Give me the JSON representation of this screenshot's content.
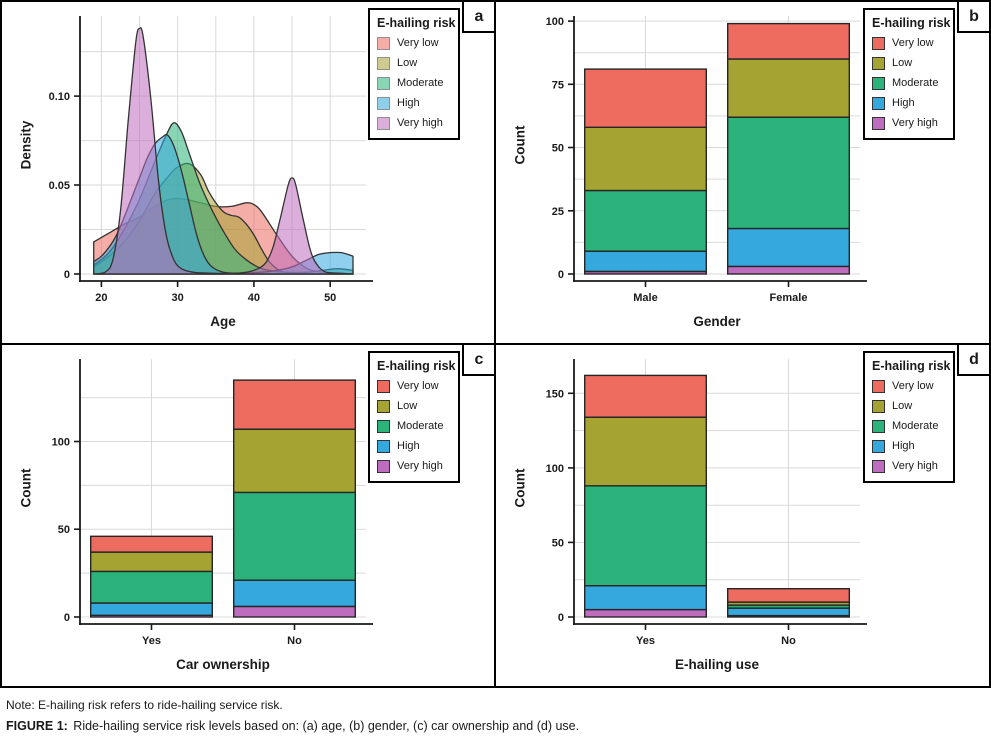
{
  "legend": {
    "title": "E-hailing risk",
    "items": [
      {
        "label": "Very low",
        "color": "#ED6B5F"
      },
      {
        "label": "Low",
        "color": "#A5A433"
      },
      {
        "label": "Moderate",
        "color": "#2BB37B"
      },
      {
        "label": "High",
        "color": "#35A8DE"
      },
      {
        "label": "Very high",
        "color": "#BE6CBE"
      }
    ]
  },
  "note": "Note: E-hailing risk refers to ride-hailing service risk.",
  "caption": {
    "prefix": "FIGURE 1:",
    "text": " Ride-hailing service risk levels based on: (a) age, (b) gender, (c) car ownership and (d) use."
  },
  "colors": {
    "axis": "#1a1a1a",
    "grid": "#d9d9d9",
    "outline": "#262626",
    "curve_stroke": "#333333"
  },
  "chart_data": [
    {
      "label": "a",
      "type": "area",
      "xlabel": "Age",
      "ylabel": "Density",
      "xlim": [
        17.2,
        54.7
      ],
      "xticks": [
        {
          "v": 20,
          "label": "20"
        },
        {
          "v": 30,
          "label": "30"
        },
        {
          "v": 40,
          "label": "40"
        },
        {
          "v": 50,
          "label": "50"
        }
      ],
      "ymax": 0.145,
      "yticks": [
        {
          "v": 0,
          "label": "0"
        },
        {
          "v": 0.05,
          "label": "0.05"
        },
        {
          "v": 0.1,
          "label": "0.10"
        }
      ],
      "grid": true,
      "legend_position": "top-right",
      "fill_opacity": 0.55,
      "series": [
        {
          "name": "Very low",
          "color": "#ED6B5F",
          "points": [
            [
              19,
              0.018
            ],
            [
              21,
              0.023
            ],
            [
              23,
              0.028
            ],
            [
              25,
              0.032
            ],
            [
              27,
              0.038
            ],
            [
              29,
              0.042
            ],
            [
              31,
              0.042
            ],
            [
              33,
              0.04
            ],
            [
              35,
              0.038
            ],
            [
              37,
              0.038
            ],
            [
              39,
              0.04
            ],
            [
              40,
              0.039
            ],
            [
              41,
              0.035
            ],
            [
              43,
              0.022
            ],
            [
              45,
              0.01
            ],
            [
              47,
              0.003
            ],
            [
              49,
              0.001
            ],
            [
              51,
              0.0005
            ],
            [
              53,
              0
            ]
          ]
        },
        {
          "name": "Low",
          "color": "#A5A433",
          "points": [
            [
              19,
              0.004
            ],
            [
              21,
              0.01
            ],
            [
              23,
              0.018
            ],
            [
              25,
              0.03
            ],
            [
              27,
              0.045
            ],
            [
              29,
              0.056
            ],
            [
              30,
              0.06
            ],
            [
              31.5,
              0.062
            ],
            [
              33,
              0.056
            ],
            [
              34,
              0.047
            ],
            [
              35,
              0.04
            ],
            [
              36,
              0.035
            ],
            [
              37,
              0.033
            ],
            [
              38,
              0.032
            ],
            [
              39,
              0.028
            ],
            [
              40,
              0.022
            ],
            [
              41,
              0.014
            ],
            [
              42,
              0.007
            ],
            [
              43,
              0.003
            ],
            [
              44,
              0.001
            ],
            [
              46,
              0
            ],
            [
              53,
              0
            ]
          ]
        },
        {
          "name": "Moderate",
          "color": "#2BB37B",
          "points": [
            [
              19,
              0.005
            ],
            [
              21,
              0.012
            ],
            [
              23,
              0.025
            ],
            [
              25,
              0.042
            ],
            [
              27,
              0.063
            ],
            [
              28.5,
              0.078
            ],
            [
              29.5,
              0.085
            ],
            [
              30.5,
              0.08
            ],
            [
              31.5,
              0.068
            ],
            [
              33,
              0.05
            ],
            [
              34.5,
              0.036
            ],
            [
              36,
              0.024
            ],
            [
              37.5,
              0.014
            ],
            [
              39,
              0.008
            ],
            [
              40.5,
              0.004
            ],
            [
              42,
              0.002
            ],
            [
              44,
              0.001
            ],
            [
              47,
              0.001
            ],
            [
              49,
              0.002
            ],
            [
              51,
              0.003
            ],
            [
              53,
              0.002
            ]
          ]
        },
        {
          "name": "High",
          "color": "#35A8DE",
          "points": [
            [
              19,
              0.007
            ],
            [
              20,
              0.01
            ],
            [
              21,
              0.015
            ],
            [
              22,
              0.022
            ],
            [
              23,
              0.032
            ],
            [
              24,
              0.043
            ],
            [
              25,
              0.054
            ],
            [
              26,
              0.065
            ],
            [
              27,
              0.073
            ],
            [
              28,
              0.077
            ],
            [
              28.7,
              0.078
            ],
            [
              29.5,
              0.072
            ],
            [
              30.5,
              0.058
            ],
            [
              31.5,
              0.04
            ],
            [
              32.5,
              0.022
            ],
            [
              33.5,
              0.01
            ],
            [
              34.5,
              0.004
            ],
            [
              36,
              0.001
            ],
            [
              38,
              0.0005
            ],
            [
              41,
              0.001
            ],
            [
              43,
              0.002
            ],
            [
              45,
              0.004
            ],
            [
              47,
              0.008
            ],
            [
              48.5,
              0.011
            ],
            [
              50,
              0.012
            ],
            [
              51.5,
              0.012
            ],
            [
              53,
              0.01
            ]
          ]
        },
        {
          "name": "Very high",
          "color": "#BE6CBE",
          "points": [
            [
              19,
              0
            ],
            [
              20.5,
              0.001
            ],
            [
              21.5,
              0.008
            ],
            [
              22.5,
              0.035
            ],
            [
              23.5,
              0.085
            ],
            [
              24.5,
              0.13
            ],
            [
              25,
              0.138
            ],
            [
              25.5,
              0.133
            ],
            [
              26.5,
              0.098
            ],
            [
              27.5,
              0.052
            ],
            [
              28.5,
              0.022
            ],
            [
              29.5,
              0.008
            ],
            [
              30.5,
              0.003
            ],
            [
              32,
              0.001
            ],
            [
              34,
              0.0005
            ],
            [
              38,
              0.0005
            ],
            [
              40,
              0.002
            ],
            [
              41.5,
              0.006
            ],
            [
              42.5,
              0.015
            ],
            [
              43.5,
              0.032
            ],
            [
              44.5,
              0.05
            ],
            [
              45,
              0.054
            ],
            [
              45.5,
              0.05
            ],
            [
              46.5,
              0.03
            ],
            [
              47.5,
              0.012
            ],
            [
              48.5,
              0.004
            ],
            [
              49.5,
              0.001
            ],
            [
              51,
              0.0005
            ],
            [
              53,
              0
            ]
          ]
        }
      ]
    },
    {
      "label": "b",
      "type": "bar",
      "stacked": true,
      "xlabel": "Gender",
      "ylabel": "Count",
      "categories": [
        "Male",
        "Female"
      ],
      "ymax": 102,
      "yticks": [
        {
          "v": 0,
          "label": "0"
        },
        {
          "v": 25,
          "label": "25"
        },
        {
          "v": 50,
          "label": "50"
        },
        {
          "v": 75,
          "label": "75"
        },
        {
          "v": 100,
          "label": "100"
        }
      ],
      "grid": true,
      "legend_position": "top-right",
      "series": [
        {
          "name": "Very high",
          "color": "#BE6CBE",
          "values": [
            1,
            3
          ]
        },
        {
          "name": "High",
          "color": "#35A8DE",
          "values": [
            8,
            15
          ]
        },
        {
          "name": "Moderate",
          "color": "#2BB37B",
          "values": [
            24,
            44
          ]
        },
        {
          "name": "Low",
          "color": "#A5A433",
          "values": [
            25,
            23
          ]
        },
        {
          "name": "Very low",
          "color": "#ED6B5F",
          "values": [
            23,
            14
          ]
        }
      ]
    },
    {
      "label": "c",
      "type": "bar",
      "stacked": true,
      "xlabel": "Car ownership",
      "ylabel": "Count",
      "categories": [
        "Yes",
        "No"
      ],
      "ymax": 147,
      "yticks": [
        {
          "v": 0,
          "label": "0"
        },
        {
          "v": 50,
          "label": "50"
        },
        {
          "v": 100,
          "label": "100"
        }
      ],
      "grid": true,
      "legend_position": "top-right",
      "series": [
        {
          "name": "Very high",
          "color": "#BE6CBE",
          "values": [
            1,
            6
          ]
        },
        {
          "name": "High",
          "color": "#35A8DE",
          "values": [
            7,
            15
          ]
        },
        {
          "name": "Moderate",
          "color": "#2BB37B",
          "values": [
            18,
            50
          ]
        },
        {
          "name": "Low",
          "color": "#A5A433",
          "values": [
            11,
            36
          ]
        },
        {
          "name": "Very low",
          "color": "#ED6B5F",
          "values": [
            9,
            28
          ]
        }
      ]
    },
    {
      "label": "d",
      "type": "bar",
      "stacked": true,
      "xlabel": "E-hailing use",
      "ylabel": "Count",
      "categories": [
        "Yes",
        "No"
      ],
      "ymax": 173,
      "yticks": [
        {
          "v": 0,
          "label": "0"
        },
        {
          "v": 50,
          "label": "50"
        },
        {
          "v": 100,
          "label": "100"
        },
        {
          "v": 150,
          "label": "150"
        }
      ],
      "grid": true,
      "legend_position": "top-right",
      "series": [
        {
          "name": "Very high",
          "color": "#BE6CBE",
          "values": [
            5,
            1
          ]
        },
        {
          "name": "High",
          "color": "#35A8DE",
          "values": [
            16,
            5
          ]
        },
        {
          "name": "Moderate",
          "color": "#2BB37B",
          "values": [
            67,
            2
          ]
        },
        {
          "name": "Low",
          "color": "#A5A433",
          "values": [
            46,
            2
          ]
        },
        {
          "name": "Very low",
          "color": "#ED6B5F",
          "values": [
            28,
            9
          ]
        }
      ]
    }
  ]
}
